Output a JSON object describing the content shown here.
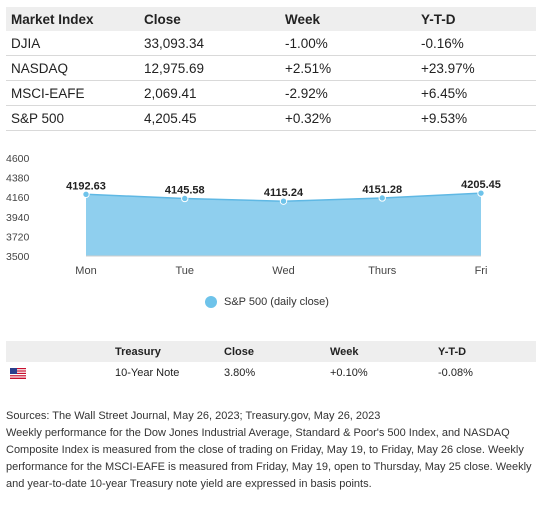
{
  "market_table": {
    "headers": [
      "Market Index",
      "Close",
      "Week",
      "Y-T-D"
    ],
    "rows": [
      [
        "DJIA",
        "33,093.34",
        "-1.00%",
        "-0.16%"
      ],
      [
        "NASDAQ",
        "12,975.69",
        "+2.51%",
        "+23.97%"
      ],
      [
        "MSCI-EAFE",
        "2,069.41",
        "-2.92%",
        "+6.45%"
      ],
      [
        "S&P 500",
        "4,205.45",
        "+0.32%",
        "+9.53%"
      ]
    ]
  },
  "chart_data": {
    "type": "area",
    "categories": [
      "Mon",
      "Tue",
      "Wed",
      "Thurs",
      "Fri"
    ],
    "series": [
      {
        "name": "S&P 500 (daily close)",
        "values": [
          4192.63,
          4145.58,
          4115.24,
          4151.28,
          4205.45
        ]
      }
    ],
    "data_labels": [
      "4192.63",
      "4145.58",
      "4115.24",
      "4151.28",
      "4205.45"
    ],
    "y_ticks": [
      4600,
      4380,
      4160,
      3940,
      3720,
      3500
    ],
    "ylim": [
      3500,
      4600
    ],
    "title": "",
    "xlabel": "",
    "ylabel": "",
    "legend_position": "bottom",
    "grid": false,
    "color": "#8fcfee",
    "line_color": "#5fb8e4",
    "point_color": "#6ec3ea"
  },
  "legend": {
    "label": "S&P 500 (daily close)"
  },
  "treasury_table": {
    "headers": [
      "",
      "Treasury",
      "Close",
      "Week",
      "Y-T-D"
    ],
    "row": {
      "flag_icon": "us-flag-icon",
      "name": "10-Year Note",
      "close": "3.80%",
      "week": "+0.10%",
      "ytd": "-0.08%"
    }
  },
  "notes": {
    "sources": "Sources: The Wall Street Journal, May 26, 2023; Treasury.gov, May 26, 2023",
    "body": "Weekly performance for the Dow Jones Industrial Average, Standard & Poor's 500 Index, and NASDAQ Composite Index is measured from the close of trading on Friday, May 19, to Friday, May 26 close. Weekly performance for the MSCI-EAFE is measured from Friday, May 19, open to Thursday, May 25 close. Weekly and year-to-date 10-year Treasury note yield are expressed in basis points."
  }
}
